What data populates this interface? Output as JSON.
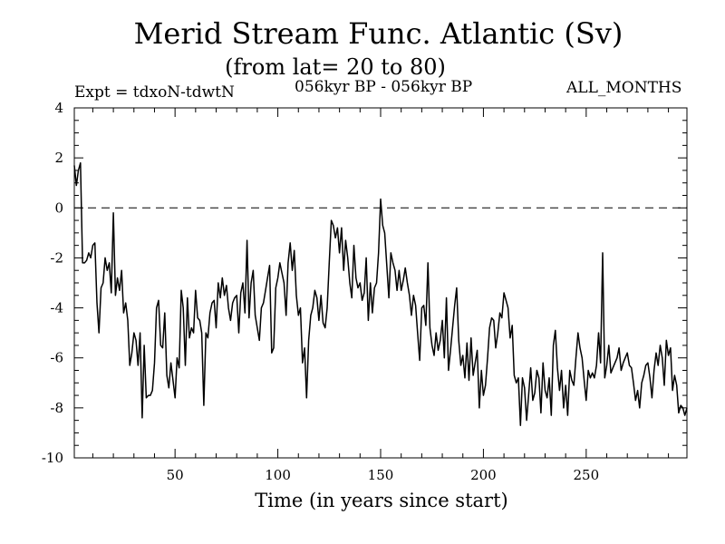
{
  "chart_data": {
    "type": "line",
    "title": "Merid Stream Func. Atlantic (Sv)",
    "subtitle": "(from lat= 20 to 80)",
    "left_note": "Expt = tdxoN-tdwtN",
    "center_note": "056kyr BP - 056kyr BP",
    "right_note": "ALL_MONTHS",
    "xlabel": "Time (in years since start)",
    "ylabel": "",
    "xlim": [
      1,
      299
    ],
    "ylim": [
      -10,
      4
    ],
    "xticks": [
      50,
      100,
      150,
      200,
      250
    ],
    "yticks": [
      -10,
      -8,
      -6,
      -4,
      -2,
      0,
      2,
      4
    ],
    "reference_line": {
      "y": 0,
      "style": "dashed"
    },
    "grid": false,
    "series": [
      {
        "points": [
          [
            1,
            1.7
          ],
          [
            2,
            0.9
          ],
          [
            3,
            1.5
          ],
          [
            4,
            1.8
          ],
          [
            5,
            -2.2
          ],
          [
            6,
            -2.2
          ],
          [
            7,
            -2.1
          ],
          [
            8,
            -1.8
          ],
          [
            9,
            -2.0
          ],
          [
            10,
            -1.5
          ],
          [
            11,
            -1.4
          ],
          [
            12,
            -3.8
          ],
          [
            13,
            -5.0
          ],
          [
            14,
            -3.2
          ],
          [
            15,
            -3.0
          ],
          [
            16,
            -2.0
          ],
          [
            17,
            -2.5
          ],
          [
            18,
            -2.2
          ],
          [
            19,
            -3.4
          ],
          [
            20,
            -0.2
          ],
          [
            21,
            -3.5
          ],
          [
            22,
            -2.8
          ],
          [
            23,
            -3.3
          ],
          [
            24,
            -2.5
          ],
          [
            25,
            -4.2
          ],
          [
            26,
            -3.8
          ],
          [
            27,
            -4.5
          ],
          [
            28,
            -6.3
          ],
          [
            29,
            -5.8
          ],
          [
            30,
            -5.0
          ],
          [
            31,
            -5.3
          ],
          [
            32,
            -6.3
          ],
          [
            33,
            -5.0
          ],
          [
            34,
            -8.4
          ],
          [
            35,
            -5.5
          ],
          [
            36,
            -7.6
          ],
          [
            37,
            -7.5
          ],
          [
            38,
            -7.5
          ],
          [
            39,
            -7.3
          ],
          [
            40,
            -6.2
          ],
          [
            41,
            -4.0
          ],
          [
            42,
            -3.7
          ],
          [
            43,
            -5.5
          ],
          [
            44,
            -5.6
          ],
          [
            45,
            -4.2
          ],
          [
            46,
            -6.7
          ],
          [
            47,
            -7.2
          ],
          [
            48,
            -6.2
          ],
          [
            49,
            -6.9
          ],
          [
            50,
            -7.6
          ],
          [
            51,
            -6.0
          ],
          [
            52,
            -6.4
          ],
          [
            53,
            -3.3
          ],
          [
            54,
            -4.0
          ],
          [
            55,
            -6.3
          ],
          [
            56,
            -3.6
          ],
          [
            57,
            -5.2
          ],
          [
            58,
            -4.8
          ],
          [
            59,
            -5.0
          ],
          [
            60,
            -3.3
          ],
          [
            61,
            -4.4
          ],
          [
            62,
            -4.5
          ],
          [
            63,
            -5.0
          ],
          [
            64,
            -7.9
          ],
          [
            65,
            -5.0
          ],
          [
            66,
            -5.2
          ],
          [
            67,
            -4.2
          ],
          [
            68,
            -3.8
          ],
          [
            69,
            -3.7
          ],
          [
            70,
            -4.8
          ],
          [
            71,
            -3.0
          ],
          [
            72,
            -3.6
          ],
          [
            73,
            -2.8
          ],
          [
            74,
            -3.5
          ],
          [
            75,
            -3.1
          ],
          [
            76,
            -4.0
          ],
          [
            77,
            -4.5
          ],
          [
            78,
            -3.8
          ],
          [
            79,
            -3.6
          ],
          [
            80,
            -3.5
          ],
          [
            81,
            -5.0
          ],
          [
            82,
            -3.4
          ],
          [
            83,
            -3.0
          ],
          [
            84,
            -4.2
          ],
          [
            85,
            -1.3
          ],
          [
            86,
            -4.4
          ],
          [
            87,
            -3.0
          ],
          [
            88,
            -2.5
          ],
          [
            89,
            -4.3
          ],
          [
            90,
            -4.8
          ],
          [
            91,
            -5.3
          ],
          [
            92,
            -4.0
          ],
          [
            93,
            -3.8
          ],
          [
            94,
            -3.3
          ],
          [
            95,
            -2.8
          ],
          [
            96,
            -2.3
          ],
          [
            97,
            -5.8
          ],
          [
            98,
            -5.6
          ],
          [
            99,
            -3.2
          ],
          [
            100,
            -2.8
          ],
          [
            101,
            -2.2
          ],
          [
            102,
            -2.6
          ],
          [
            103,
            -3.0
          ],
          [
            104,
            -4.3
          ],
          [
            105,
            -2.2
          ],
          [
            106,
            -1.4
          ],
          [
            107,
            -2.5
          ],
          [
            108,
            -1.7
          ],
          [
            109,
            -3.5
          ],
          [
            110,
            -4.3
          ],
          [
            111,
            -4.0
          ],
          [
            112,
            -6.2
          ],
          [
            113,
            -5.6
          ],
          [
            114,
            -7.6
          ],
          [
            115,
            -5.3
          ],
          [
            116,
            -4.3
          ],
          [
            117,
            -4.0
          ],
          [
            118,
            -3.3
          ],
          [
            119,
            -3.6
          ],
          [
            120,
            -4.5
          ],
          [
            121,
            -3.5
          ],
          [
            122,
            -4.6
          ],
          [
            123,
            -4.8
          ],
          [
            124,
            -4.0
          ],
          [
            125,
            -2.2
          ],
          [
            126,
            -0.5
          ],
          [
            127,
            -0.7
          ],
          [
            128,
            -1.2
          ],
          [
            129,
            -0.8
          ],
          [
            130,
            -1.8
          ],
          [
            131,
            -0.8
          ],
          [
            132,
            -2.5
          ],
          [
            133,
            -1.3
          ],
          [
            134,
            -2.0
          ],
          [
            135,
            -3.0
          ],
          [
            136,
            -3.6
          ],
          [
            137,
            -1.5
          ],
          [
            138,
            -2.8
          ],
          [
            139,
            -3.2
          ],
          [
            140,
            -3.0
          ],
          [
            141,
            -3.7
          ],
          [
            142,
            -3.4
          ],
          [
            143,
            -2.0
          ],
          [
            144,
            -4.5
          ],
          [
            145,
            -3.0
          ],
          [
            146,
            -4.2
          ],
          [
            147,
            -3.2
          ],
          [
            148,
            -3.0
          ],
          [
            149,
            -1.8
          ],
          [
            150,
            0.35
          ],
          [
            151,
            -0.7
          ],
          [
            152,
            -1.0
          ],
          [
            153,
            -2.3
          ],
          [
            154,
            -3.6
          ],
          [
            155,
            -1.8
          ],
          [
            156,
            -2.2
          ],
          [
            157,
            -2.5
          ],
          [
            158,
            -3.3
          ],
          [
            159,
            -2.5
          ],
          [
            160,
            -3.3
          ],
          [
            161,
            -2.9
          ],
          [
            162,
            -2.4
          ],
          [
            163,
            -3.0
          ],
          [
            164,
            -3.5
          ],
          [
            165,
            -4.3
          ],
          [
            166,
            -3.5
          ],
          [
            167,
            -3.9
          ],
          [
            168,
            -5.0
          ],
          [
            169,
            -6.1
          ],
          [
            170,
            -4.0
          ],
          [
            171,
            -3.9
          ],
          [
            172,
            -4.7
          ],
          [
            173,
            -2.2
          ],
          [
            174,
            -4.8
          ],
          [
            175,
            -5.5
          ],
          [
            176,
            -5.9
          ],
          [
            177,
            -5.0
          ],
          [
            178,
            -5.7
          ],
          [
            179,
            -5.3
          ],
          [
            180,
            -4.5
          ],
          [
            181,
            -6.0
          ],
          [
            182,
            -3.6
          ],
          [
            183,
            -6.5
          ],
          [
            184,
            -5.7
          ],
          [
            185,
            -4.8
          ],
          [
            186,
            -3.9
          ],
          [
            187,
            -3.2
          ],
          [
            188,
            -5.3
          ],
          [
            189,
            -6.3
          ],
          [
            190,
            -5.9
          ],
          [
            191,
            -6.8
          ],
          [
            192,
            -5.4
          ],
          [
            193,
            -6.9
          ],
          [
            194,
            -5.2
          ],
          [
            195,
            -6.7
          ],
          [
            196,
            -6.2
          ],
          [
            197,
            -5.7
          ],
          [
            198,
            -8.0
          ],
          [
            199,
            -6.5
          ],
          [
            200,
            -7.5
          ],
          [
            201,
            -7.1
          ],
          [
            202,
            -6.0
          ],
          [
            203,
            -4.8
          ],
          [
            204,
            -4.4
          ],
          [
            205,
            -4.5
          ],
          [
            206,
            -5.6
          ],
          [
            207,
            -5.0
          ],
          [
            208,
            -4.2
          ],
          [
            209,
            -4.4
          ],
          [
            210,
            -3.4
          ],
          [
            211,
            -3.7
          ],
          [
            212,
            -4.0
          ],
          [
            213,
            -5.2
          ],
          [
            214,
            -4.7
          ],
          [
            215,
            -6.7
          ],
          [
            216,
            -7.0
          ],
          [
            217,
            -6.8
          ],
          [
            218,
            -8.7
          ],
          [
            219,
            -6.8
          ],
          [
            220,
            -7.2
          ],
          [
            221,
            -8.5
          ],
          [
            222,
            -7.5
          ],
          [
            223,
            -6.4
          ],
          [
            224,
            -7.7
          ],
          [
            225,
            -7.4
          ],
          [
            226,
            -6.5
          ],
          [
            227,
            -6.8
          ],
          [
            228,
            -8.2
          ],
          [
            229,
            -6.2
          ],
          [
            230,
            -7.3
          ],
          [
            231,
            -7.6
          ],
          [
            232,
            -6.8
          ],
          [
            233,
            -8.3
          ],
          [
            234,
            -5.5
          ],
          [
            235,
            -4.9
          ],
          [
            236,
            -6.4
          ],
          [
            237,
            -7.3
          ],
          [
            238,
            -6.5
          ],
          [
            239,
            -8.0
          ],
          [
            240,
            -7.1
          ],
          [
            241,
            -8.3
          ],
          [
            242,
            -6.5
          ],
          [
            243,
            -6.9
          ],
          [
            244,
            -7.1
          ],
          [
            245,
            -6.0
          ],
          [
            246,
            -5.0
          ],
          [
            247,
            -5.6
          ],
          [
            248,
            -6.0
          ],
          [
            249,
            -6.9
          ],
          [
            250,
            -7.7
          ],
          [
            251,
            -6.5
          ],
          [
            252,
            -6.8
          ],
          [
            253,
            -6.6
          ],
          [
            254,
            -6.8
          ],
          [
            255,
            -6.3
          ],
          [
            256,
            -5.0
          ],
          [
            257,
            -6.2
          ],
          [
            258,
            -1.8
          ],
          [
            259,
            -6.8
          ],
          [
            260,
            -6.3
          ],
          [
            261,
            -5.5
          ],
          [
            262,
            -6.6
          ],
          [
            263,
            -6.4
          ],
          [
            264,
            -6.2
          ],
          [
            265,
            -6.0
          ],
          [
            266,
            -5.6
          ],
          [
            267,
            -6.5
          ],
          [
            268,
            -6.2
          ],
          [
            269,
            -6.0
          ],
          [
            270,
            -5.8
          ],
          [
            271,
            -6.3
          ],
          [
            272,
            -6.4
          ],
          [
            273,
            -7.0
          ],
          [
            274,
            -7.7
          ],
          [
            275,
            -7.3
          ],
          [
            276,
            -8.0
          ],
          [
            277,
            -7.0
          ],
          [
            278,
            -6.7
          ],
          [
            279,
            -6.3
          ],
          [
            280,
            -6.2
          ],
          [
            281,
            -6.8
          ],
          [
            282,
            -7.6
          ],
          [
            283,
            -6.5
          ],
          [
            284,
            -5.8
          ],
          [
            285,
            -6.3
          ],
          [
            286,
            -5.5
          ],
          [
            287,
            -6.0
          ],
          [
            288,
            -7.1
          ],
          [
            289,
            -5.3
          ],
          [
            290,
            -5.9
          ],
          [
            291,
            -5.6
          ],
          [
            292,
            -7.3
          ],
          [
            293,
            -6.7
          ],
          [
            294,
            -7.1
          ],
          [
            295,
            -8.2
          ],
          [
            296,
            -7.9
          ],
          [
            297,
            -8.0
          ],
          [
            298,
            -8.3
          ],
          [
            299,
            -8.0
          ]
        ]
      }
    ]
  }
}
